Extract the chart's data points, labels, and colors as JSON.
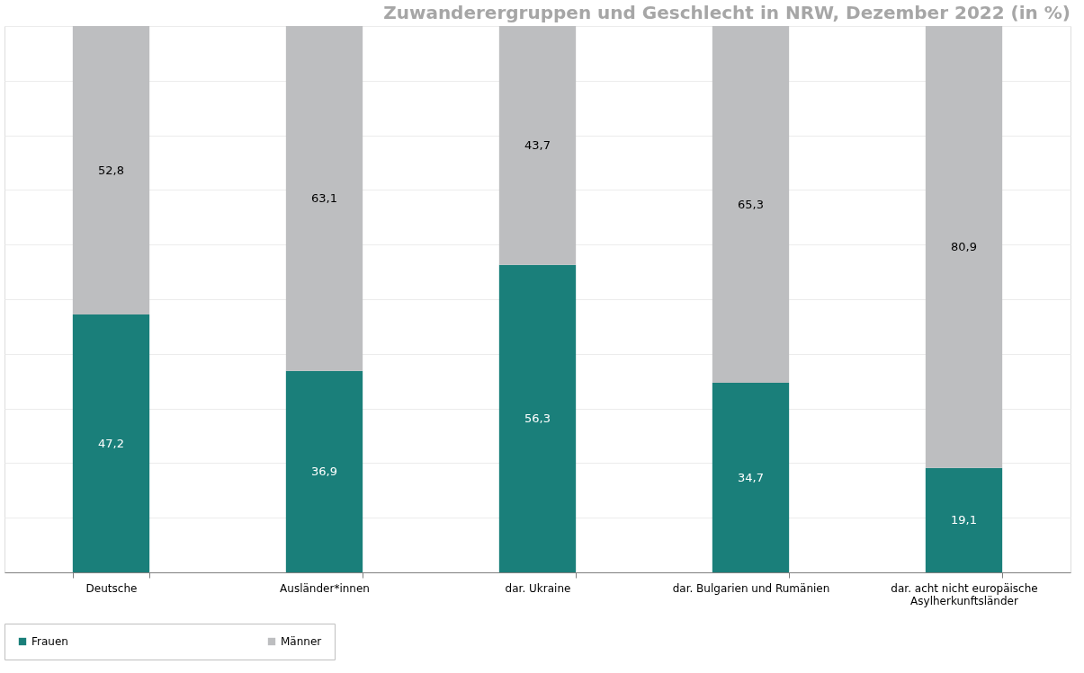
{
  "chart_data": {
    "type": "bar",
    "title": "Zuwanderergruppen und Geschlecht in NRW, Dezember 2022 (in %)",
    "categories": [
      "Deutsche",
      "Ausländer*innen",
      "dar. Ukraine",
      "dar. Bulgarien und Rumänien",
      "dar. acht nicht europäische Asylherkunftsländer"
    ],
    "series": [
      {
        "name": "Frauen",
        "color": "#1a7f7a",
        "values": [
          47.2,
          36.9,
          56.3,
          34.7,
          19.1
        ],
        "value_labels": [
          "47,2",
          "36,9",
          "56,3",
          "34,7",
          "19,1"
        ]
      },
      {
        "name": "Männer",
        "color": "#bdbec0",
        "values": [
          52.8,
          63.1,
          43.7,
          65.3,
          80.9
        ],
        "value_labels": [
          "52,8",
          "63,1",
          "43,7",
          "65,3",
          "80,9"
        ]
      }
    ],
    "stacked": true,
    "grid": "y",
    "legend": "bottom",
    "tick_labels": "x"
  }
}
